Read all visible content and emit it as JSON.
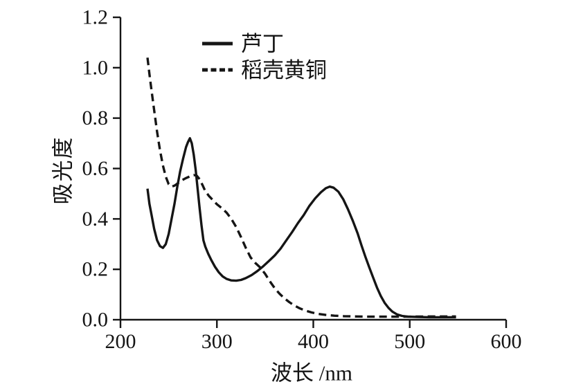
{
  "figure": {
    "background": "#ffffff",
    "line_color": "#151515"
  },
  "chart_data": {
    "type": "line",
    "xlabel": "波长 /nm",
    "ylabel": "吸光度",
    "xlim": [
      200,
      600
    ],
    "ylim": [
      0,
      1.2
    ],
    "xticks": [
      200,
      300,
      400,
      500,
      600
    ],
    "ytick_values": [
      0,
      0.2,
      0.4,
      0.6,
      0.8,
      1.0,
      1.2
    ],
    "ytick_labels": [
      "0.0",
      "0.2",
      "0.4",
      "0.6",
      "0.8",
      "1.0",
      "1.2"
    ],
    "grid": false,
    "legend_position": "upper-left-inside",
    "series": [
      {
        "name": "芦丁",
        "style": "solid",
        "points": [
          [
            228,
            0.52
          ],
          [
            230,
            0.46
          ],
          [
            232,
            0.42
          ],
          [
            235,
            0.36
          ],
          [
            238,
            0.315
          ],
          [
            241,
            0.292
          ],
          [
            244,
            0.285
          ],
          [
            247,
            0.3
          ],
          [
            250,
            0.34
          ],
          [
            253,
            0.4
          ],
          [
            256,
            0.46
          ],
          [
            259,
            0.53
          ],
          [
            262,
            0.59
          ],
          [
            265,
            0.64
          ],
          [
            268,
            0.685
          ],
          [
            270,
            0.705
          ],
          [
            272,
            0.72
          ],
          [
            274,
            0.7
          ],
          [
            276,
            0.655
          ],
          [
            278,
            0.595
          ],
          [
            280,
            0.52
          ],
          [
            282,
            0.445
          ],
          [
            284,
            0.375
          ],
          [
            286,
            0.315
          ],
          [
            288,
            0.29
          ],
          [
            291,
            0.262
          ],
          [
            294,
            0.238
          ],
          [
            298,
            0.21
          ],
          [
            302,
            0.188
          ],
          [
            306,
            0.172
          ],
          [
            310,
            0.162
          ],
          [
            315,
            0.156
          ],
          [
            320,
            0.155
          ],
          [
            325,
            0.158
          ],
          [
            330,
            0.165
          ],
          [
            336,
            0.177
          ],
          [
            342,
            0.193
          ],
          [
            348,
            0.212
          ],
          [
            354,
            0.233
          ],
          [
            360,
            0.255
          ],
          [
            366,
            0.282
          ],
          [
            372,
            0.315
          ],
          [
            378,
            0.348
          ],
          [
            384,
            0.383
          ],
          [
            390,
            0.415
          ],
          [
            396,
            0.452
          ],
          [
            402,
            0.482
          ],
          [
            408,
            0.506
          ],
          [
            413,
            0.522
          ],
          [
            417,
            0.528
          ],
          [
            421,
            0.524
          ],
          [
            426,
            0.508
          ],
          [
            431,
            0.478
          ],
          [
            436,
            0.438
          ],
          [
            441,
            0.392
          ],
          [
            446,
            0.342
          ],
          [
            450,
            0.295
          ],
          [
            454,
            0.25
          ],
          [
            458,
            0.208
          ],
          [
            462,
            0.168
          ],
          [
            466,
            0.128
          ],
          [
            470,
            0.094
          ],
          [
            474,
            0.067
          ],
          [
            478,
            0.047
          ],
          [
            482,
            0.032
          ],
          [
            487,
            0.021
          ],
          [
            492,
            0.015
          ],
          [
            498,
            0.012
          ],
          [
            508,
            0.011
          ],
          [
            520,
            0.01
          ],
          [
            535,
            0.01
          ],
          [
            548,
            0.01
          ]
        ]
      },
      {
        "name": "稻壳黄铜",
        "style": "dashed",
        "points": [
          [
            228,
            1.04
          ],
          [
            230,
            0.975
          ],
          [
            232,
            0.915
          ],
          [
            235,
            0.83
          ],
          [
            238,
            0.745
          ],
          [
            241,
            0.672
          ],
          [
            244,
            0.612
          ],
          [
            247,
            0.568
          ],
          [
            250,
            0.538
          ],
          [
            253,
            0.528
          ],
          [
            256,
            0.532
          ],
          [
            260,
            0.543
          ],
          [
            264,
            0.554
          ],
          [
            268,
            0.562
          ],
          [
            272,
            0.569
          ],
          [
            276,
            0.574
          ],
          [
            279,
            0.572
          ],
          [
            282,
            0.558
          ],
          [
            285,
            0.535
          ],
          [
            288,
            0.51
          ],
          [
            292,
            0.49
          ],
          [
            296,
            0.474
          ],
          [
            300,
            0.458
          ],
          [
            305,
            0.443
          ],
          [
            310,
            0.425
          ],
          [
            315,
            0.4
          ],
          [
            320,
            0.368
          ],
          [
            325,
            0.328
          ],
          [
            330,
            0.285
          ],
          [
            335,
            0.247
          ],
          [
            340,
            0.225
          ],
          [
            345,
            0.207
          ],
          [
            350,
            0.182
          ],
          [
            355,
            0.152
          ],
          [
            360,
            0.125
          ],
          [
            365,
            0.103
          ],
          [
            370,
            0.085
          ],
          [
            375,
            0.07
          ],
          [
            380,
            0.057
          ],
          [
            386,
            0.045
          ],
          [
            392,
            0.036
          ],
          [
            398,
            0.029
          ],
          [
            405,
            0.023
          ],
          [
            413,
            0.019
          ],
          [
            422,
            0.016
          ],
          [
            432,
            0.014
          ],
          [
            445,
            0.013
          ],
          [
            460,
            0.012
          ],
          [
            480,
            0.012
          ],
          [
            500,
            0.012
          ],
          [
            520,
            0.013
          ],
          [
            535,
            0.013
          ],
          [
            548,
            0.013
          ]
        ]
      }
    ]
  }
}
